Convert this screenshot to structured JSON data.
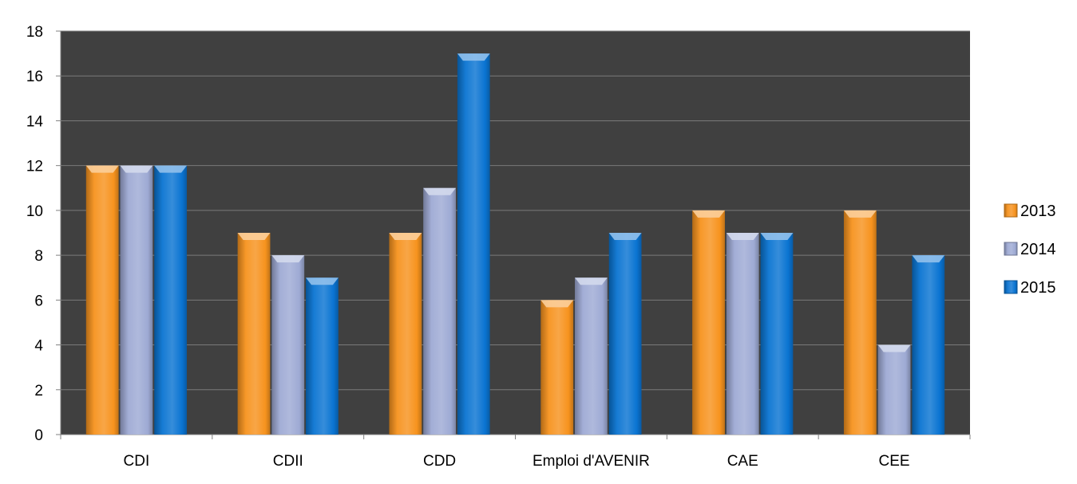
{
  "chart_data": {
    "type": "bar",
    "title": "",
    "xlabel": "",
    "ylabel": "",
    "categories": [
      "CDI",
      "CDII",
      "CDD",
      "Emploi d'AVENIR",
      "CAE",
      "CEE"
    ],
    "series": [
      {
        "name": "2013",
        "values": [
          12,
          9,
          9,
          6,
          10,
          10
        ]
      },
      {
        "name": "2014",
        "values": [
          12,
          8,
          11,
          7,
          9,
          4
        ]
      },
      {
        "name": "2015",
        "values": [
          12,
          7,
          17,
          9,
          9,
          8
        ]
      }
    ],
    "ylim": [
      0,
      18
    ],
    "yticks": [
      0,
      2,
      4,
      6,
      8,
      10,
      12,
      14,
      16,
      18
    ],
    "grid": true,
    "legend_position": "right",
    "colors": {
      "plot_background": "#404040",
      "gridline": "#7a7a7a",
      "axis": "#808080",
      "series": [
        "#F7931E",
        "#9EAAD4",
        "#0A74D2"
      ]
    }
  }
}
